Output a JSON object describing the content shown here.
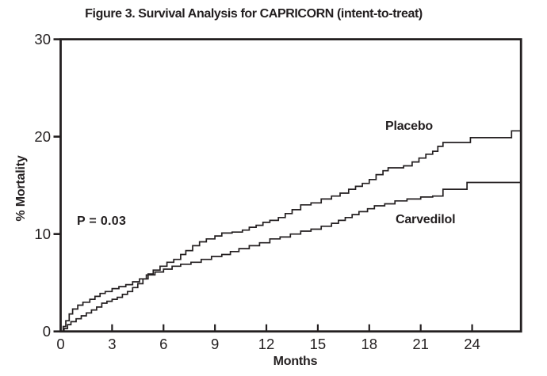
{
  "chart_data": {
    "type": "line",
    "subtype": "kaplan-meier-step",
    "title": "Figure 3. Survival Analysis for CAPRICORN (intent-to-treat)",
    "xlabel": "Months",
    "ylabel": "% Mortality",
    "xlim": [
      0,
      26.85
    ],
    "ylim": [
      0,
      30
    ],
    "x_ticks": [
      0,
      3,
      6,
      9,
      12,
      15,
      18,
      21,
      24
    ],
    "y_ticks": [
      0,
      10,
      20,
      30
    ],
    "grid": false,
    "frame": "full-box",
    "legend_position": "labels-on-plot",
    "line_color": "#231f20",
    "background_color": "#ffffff",
    "annotations": [
      {
        "text": "P = 0.03"
      }
    ],
    "series": [
      {
        "name": "Placebo",
        "final_value_pct": 20.6,
        "points": [
          [
            0,
            0
          ],
          [
            0.2,
            0.3
          ],
          [
            0.4,
            0.7
          ],
          [
            0.6,
            1.0
          ],
          [
            0.9,
            1.3
          ],
          [
            1.2,
            1.6
          ],
          [
            1.5,
            1.9
          ],
          [
            1.8,
            2.2
          ],
          [
            2.1,
            2.5
          ],
          [
            2.4,
            2.9
          ],
          [
            2.7,
            3.1
          ],
          [
            3.0,
            3.3
          ],
          [
            3.3,
            3.5
          ],
          [
            3.6,
            3.8
          ],
          [
            3.9,
            4.1
          ],
          [
            4.2,
            4.5
          ],
          [
            4.5,
            4.9
          ],
          [
            4.8,
            5.4
          ],
          [
            5.1,
            5.9
          ],
          [
            5.4,
            6.3
          ],
          [
            5.8,
            6.7
          ],
          [
            6.2,
            7.1
          ],
          [
            6.6,
            7.4
          ],
          [
            7.0,
            7.9
          ],
          [
            7.3,
            8.3
          ],
          [
            7.7,
            8.8
          ],
          [
            8.1,
            9.2
          ],
          [
            8.5,
            9.5
          ],
          [
            9.0,
            9.8
          ],
          [
            9.4,
            10.1
          ],
          [
            10.0,
            10.2
          ],
          [
            10.6,
            10.4
          ],
          [
            11.0,
            10.7
          ],
          [
            11.4,
            10.9
          ],
          [
            11.8,
            11.2
          ],
          [
            12.2,
            11.4
          ],
          [
            12.7,
            11.7
          ],
          [
            13.1,
            12.1
          ],
          [
            13.5,
            12.5
          ],
          [
            14.0,
            13.0
          ],
          [
            14.6,
            13.2
          ],
          [
            15.2,
            13.6
          ],
          [
            15.8,
            13.9
          ],
          [
            16.3,
            14.2
          ],
          [
            16.8,
            14.6
          ],
          [
            17.2,
            14.9
          ],
          [
            17.6,
            15.2
          ],
          [
            18.0,
            15.6
          ],
          [
            18.4,
            16.1
          ],
          [
            18.8,
            16.5
          ],
          [
            19.1,
            16.8
          ],
          [
            20.0,
            17.0
          ],
          [
            20.5,
            17.4
          ],
          [
            20.9,
            17.8
          ],
          [
            21.3,
            18.2
          ],
          [
            21.7,
            18.5
          ],
          [
            22.0,
            19.0
          ],
          [
            22.3,
            19.4
          ],
          [
            23.9,
            19.9
          ],
          [
            26.3,
            20.6
          ],
          [
            26.85,
            20.6
          ]
        ]
      },
      {
        "name": "Carvedilol",
        "final_value_pct": 15.3,
        "points": [
          [
            0,
            0
          ],
          [
            0.15,
            0.5
          ],
          [
            0.3,
            1.1
          ],
          [
            0.5,
            1.8
          ],
          [
            0.7,
            2.3
          ],
          [
            1.0,
            2.7
          ],
          [
            1.3,
            3.0
          ],
          [
            1.7,
            3.3
          ],
          [
            2.0,
            3.6
          ],
          [
            2.3,
            3.9
          ],
          [
            2.6,
            4.1
          ],
          [
            3.0,
            4.4
          ],
          [
            3.4,
            4.6
          ],
          [
            3.8,
            4.8
          ],
          [
            4.2,
            5.1
          ],
          [
            4.6,
            5.4
          ],
          [
            5.0,
            5.8
          ],
          [
            5.5,
            6.1
          ],
          [
            6.0,
            6.4
          ],
          [
            6.5,
            6.7
          ],
          [
            7.0,
            6.9
          ],
          [
            7.6,
            7.1
          ],
          [
            8.2,
            7.4
          ],
          [
            8.8,
            7.7
          ],
          [
            9.4,
            7.9
          ],
          [
            9.9,
            8.2
          ],
          [
            10.4,
            8.5
          ],
          [
            11.0,
            8.8
          ],
          [
            11.6,
            9.1
          ],
          [
            12.2,
            9.5
          ],
          [
            12.8,
            9.7
          ],
          [
            13.4,
            10.0
          ],
          [
            14.0,
            10.3
          ],
          [
            14.6,
            10.5
          ],
          [
            15.2,
            10.8
          ],
          [
            15.8,
            11.1
          ],
          [
            16.2,
            11.4
          ],
          [
            16.6,
            11.7
          ],
          [
            17.0,
            12.0
          ],
          [
            17.4,
            12.3
          ],
          [
            17.9,
            12.6
          ],
          [
            18.3,
            12.9
          ],
          [
            18.9,
            13.1
          ],
          [
            19.5,
            13.4
          ],
          [
            20.2,
            13.6
          ],
          [
            21.0,
            13.8
          ],
          [
            21.7,
            13.9
          ],
          [
            22.3,
            14.6
          ],
          [
            23.7,
            15.3
          ],
          [
            26.85,
            15.3
          ]
        ]
      }
    ]
  }
}
